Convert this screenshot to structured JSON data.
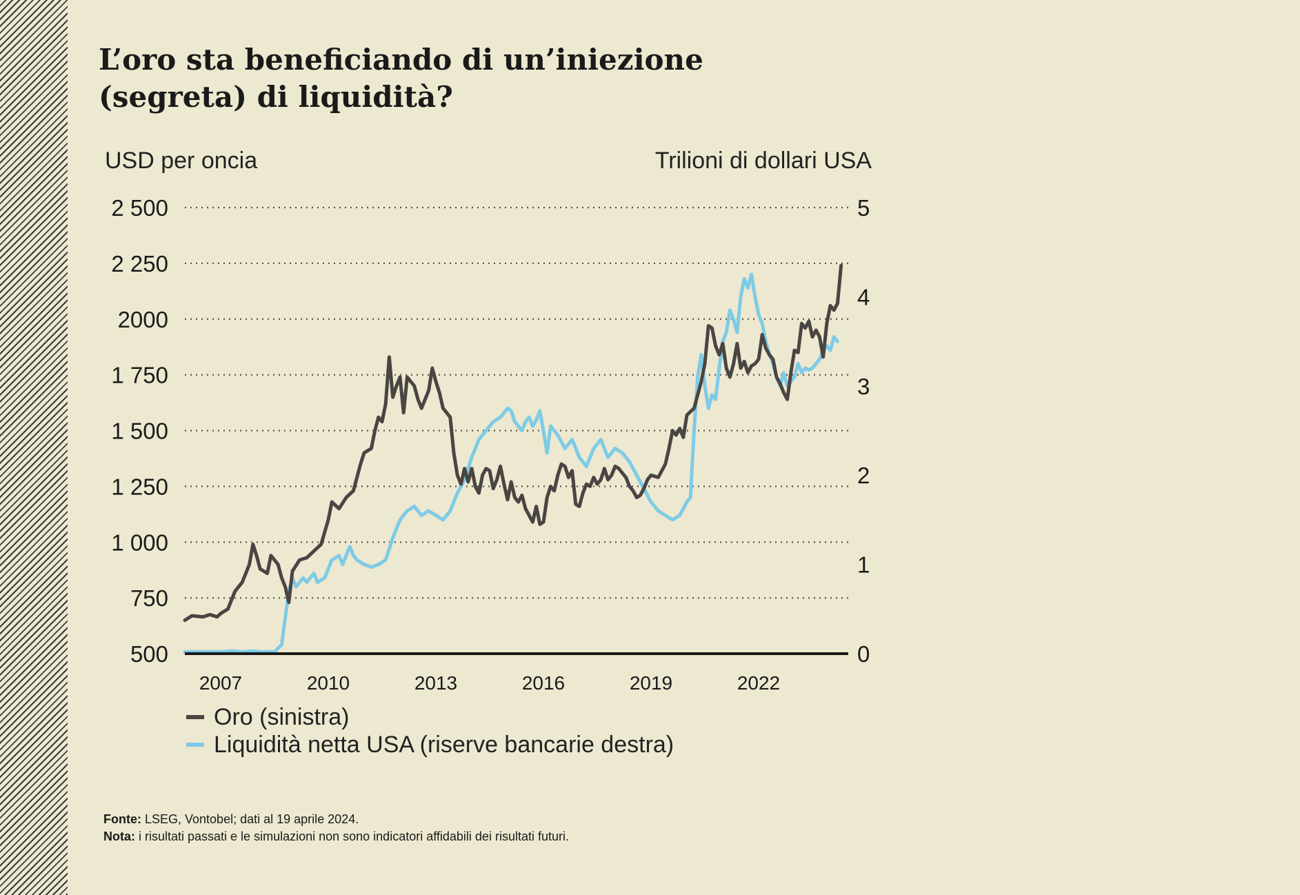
{
  "title_lines": [
    "L’oro sta beneficiando di un’iniezione",
    "(segreta) di liquidità?"
  ],
  "colors": {
    "background": "#ede8d0",
    "gold": "#4a4542",
    "liquidity": "#7ecbe6",
    "grid": "#555555",
    "axis": "#1a1a1a"
  },
  "chart_data": {
    "type": "line",
    "title": "L’oro sta beneficiando di un’iniezione (segreta) di liquidità?",
    "left_axis": {
      "label": "USD per oncia",
      "range": [
        500,
        2500
      ],
      "ticks": [
        500,
        750,
        1000,
        1250,
        1500,
        1750,
        2000,
        2250,
        2500
      ],
      "tick_labels": [
        "500",
        "750",
        "1 000",
        "1 250",
        "1 500",
        "1 750",
        "2000",
        "2 250",
        "2 500"
      ]
    },
    "right_axis": {
      "label": "Trilioni di dollari USA",
      "range": [
        0,
        5
      ],
      "ticks": [
        0,
        1,
        2,
        3,
        4,
        5
      ],
      "tick_labels": [
        "0",
        "1",
        "2",
        "3",
        "4",
        "5"
      ]
    },
    "x_axis": {
      "range": [
        2006.0,
        2024.5
      ],
      "ticks": [
        2007,
        2010,
        2013,
        2016,
        2019,
        2022
      ],
      "tick_labels": [
        "2007",
        "2010",
        "2013",
        "2016",
        "2019",
        "2022"
      ]
    },
    "grid": "horizontal dotted",
    "legend": {
      "placement": "bottom-left",
      "entries": [
        "Oro (sinistra)",
        "Liquidità netta USA (riserve bancarie destra)"
      ]
    },
    "series": [
      {
        "name": "Oro (sinistra)",
        "axis": "left",
        "color": "#4a4542",
        "points": [
          [
            2006.0,
            650
          ],
          [
            2006.2,
            670
          ],
          [
            2006.5,
            665
          ],
          [
            2006.7,
            675
          ],
          [
            2006.9,
            665
          ],
          [
            2007.0,
            680
          ],
          [
            2007.2,
            700
          ],
          [
            2007.4,
            780
          ],
          [
            2007.6,
            820
          ],
          [
            2007.8,
            900
          ],
          [
            2007.9,
            990
          ],
          [
            2008.0,
            940
          ],
          [
            2008.1,
            880
          ],
          [
            2008.3,
            860
          ],
          [
            2008.4,
            940
          ],
          [
            2008.6,
            900
          ],
          [
            2008.7,
            840
          ],
          [
            2008.8,
            800
          ],
          [
            2008.9,
            730
          ],
          [
            2009.0,
            870
          ],
          [
            2009.2,
            920
          ],
          [
            2009.4,
            930
          ],
          [
            2009.6,
            960
          ],
          [
            2009.8,
            990
          ],
          [
            2010.0,
            1100
          ],
          [
            2010.1,
            1180
          ],
          [
            2010.3,
            1150
          ],
          [
            2010.5,
            1200
          ],
          [
            2010.7,
            1230
          ],
          [
            2010.9,
            1350
          ],
          [
            2011.0,
            1400
          ],
          [
            2011.2,
            1420
          ],
          [
            2011.3,
            1500
          ],
          [
            2011.4,
            1560
          ],
          [
            2011.5,
            1540
          ],
          [
            2011.6,
            1620
          ],
          [
            2011.7,
            1830
          ],
          [
            2011.8,
            1650
          ],
          [
            2011.9,
            1700
          ],
          [
            2012.0,
            1740
          ],
          [
            2012.1,
            1580
          ],
          [
            2012.2,
            1740
          ],
          [
            2012.4,
            1700
          ],
          [
            2012.5,
            1640
          ],
          [
            2012.6,
            1600
          ],
          [
            2012.8,
            1680
          ],
          [
            2012.9,
            1780
          ],
          [
            2013.0,
            1720
          ],
          [
            2013.1,
            1670
          ],
          [
            2013.2,
            1600
          ],
          [
            2013.4,
            1560
          ],
          [
            2013.5,
            1400
          ],
          [
            2013.6,
            1300
          ],
          [
            2013.7,
            1260
          ],
          [
            2013.8,
            1330
          ],
          [
            2013.9,
            1270
          ],
          [
            2014.0,
            1330
          ],
          [
            2014.1,
            1250
          ],
          [
            2014.2,
            1220
          ],
          [
            2014.3,
            1300
          ],
          [
            2014.4,
            1330
          ],
          [
            2014.5,
            1320
          ],
          [
            2014.6,
            1240
          ],
          [
            2014.7,
            1280
          ],
          [
            2014.8,
            1340
          ],
          [
            2014.9,
            1260
          ],
          [
            2015.0,
            1190
          ],
          [
            2015.1,
            1270
          ],
          [
            2015.2,
            1200
          ],
          [
            2015.3,
            1180
          ],
          [
            2015.4,
            1210
          ],
          [
            2015.5,
            1150
          ],
          [
            2015.6,
            1120
          ],
          [
            2015.7,
            1090
          ],
          [
            2015.8,
            1160
          ],
          [
            2015.9,
            1080
          ],
          [
            2016.0,
            1090
          ],
          [
            2016.1,
            1200
          ],
          [
            2016.2,
            1250
          ],
          [
            2016.3,
            1230
          ],
          [
            2016.4,
            1300
          ],
          [
            2016.5,
            1350
          ],
          [
            2016.6,
            1340
          ],
          [
            2016.7,
            1290
          ],
          [
            2016.8,
            1320
          ],
          [
            2016.9,
            1170
          ],
          [
            2017.0,
            1160
          ],
          [
            2017.1,
            1220
          ],
          [
            2017.2,
            1260
          ],
          [
            2017.3,
            1250
          ],
          [
            2017.4,
            1290
          ],
          [
            2017.5,
            1260
          ],
          [
            2017.6,
            1280
          ],
          [
            2017.7,
            1330
          ],
          [
            2017.8,
            1280
          ],
          [
            2017.9,
            1300
          ],
          [
            2018.0,
            1340
          ],
          [
            2018.1,
            1330
          ],
          [
            2018.2,
            1310
          ],
          [
            2018.3,
            1290
          ],
          [
            2018.4,
            1250
          ],
          [
            2018.5,
            1230
          ],
          [
            2018.6,
            1200
          ],
          [
            2018.7,
            1210
          ],
          [
            2018.8,
            1240
          ],
          [
            2018.9,
            1280
          ],
          [
            2019.0,
            1300
          ],
          [
            2019.2,
            1290
          ],
          [
            2019.4,
            1350
          ],
          [
            2019.5,
            1420
          ],
          [
            2019.6,
            1500
          ],
          [
            2019.7,
            1480
          ],
          [
            2019.8,
            1510
          ],
          [
            2019.9,
            1470
          ],
          [
            2020.0,
            1570
          ],
          [
            2020.2,
            1600
          ],
          [
            2020.4,
            1720
          ],
          [
            2020.5,
            1800
          ],
          [
            2020.6,
            1970
          ],
          [
            2020.7,
            1960
          ],
          [
            2020.8,
            1880
          ],
          [
            2020.9,
            1840
          ],
          [
            2021.0,
            1890
          ],
          [
            2021.1,
            1780
          ],
          [
            2021.2,
            1740
          ],
          [
            2021.3,
            1800
          ],
          [
            2021.4,
            1890
          ],
          [
            2021.5,
            1780
          ],
          [
            2021.6,
            1810
          ],
          [
            2021.7,
            1760
          ],
          [
            2021.8,
            1790
          ],
          [
            2021.9,
            1800
          ],
          [
            2022.0,
            1820
          ],
          [
            2022.1,
            1930
          ],
          [
            2022.2,
            1870
          ],
          [
            2022.3,
            1840
          ],
          [
            2022.4,
            1820
          ],
          [
            2022.5,
            1740
          ],
          [
            2022.6,
            1710
          ],
          [
            2022.7,
            1670
          ],
          [
            2022.8,
            1640
          ],
          [
            2022.9,
            1760
          ],
          [
            2023.0,
            1860
          ],
          [
            2023.1,
            1850
          ],
          [
            2023.2,
            1980
          ],
          [
            2023.3,
            1960
          ],
          [
            2023.4,
            1990
          ],
          [
            2023.5,
            1920
          ],
          [
            2023.6,
            1950
          ],
          [
            2023.7,
            1920
          ],
          [
            2023.8,
            1830
          ],
          [
            2023.9,
            1980
          ],
          [
            2024.0,
            2060
          ],
          [
            2024.1,
            2040
          ],
          [
            2024.2,
            2070
          ],
          [
            2024.3,
            2240
          ]
        ]
      },
      {
        "name": "Liquidità netta USA (riserve bancarie destra)",
        "axis": "right",
        "color": "#7ecbe6",
        "points": [
          [
            2006.0,
            0.02
          ],
          [
            2006.5,
            0.02
          ],
          [
            2007.0,
            0.02
          ],
          [
            2007.3,
            0.03
          ],
          [
            2007.6,
            0.02
          ],
          [
            2007.9,
            0.03
          ],
          [
            2008.1,
            0.02
          ],
          [
            2008.3,
            0.02
          ],
          [
            2008.5,
            0.02
          ],
          [
            2008.7,
            0.1
          ],
          [
            2008.8,
            0.4
          ],
          [
            2008.9,
            0.7
          ],
          [
            2009.0,
            0.85
          ],
          [
            2009.1,
            0.75
          ],
          [
            2009.3,
            0.85
          ],
          [
            2009.4,
            0.8
          ],
          [
            2009.6,
            0.9
          ],
          [
            2009.7,
            0.8
          ],
          [
            2009.9,
            0.85
          ],
          [
            2010.1,
            1.05
          ],
          [
            2010.3,
            1.1
          ],
          [
            2010.4,
            1.0
          ],
          [
            2010.6,
            1.2
          ],
          [
            2010.7,
            1.1
          ],
          [
            2010.8,
            1.05
          ],
          [
            2011.0,
            1.0
          ],
          [
            2011.2,
            0.97
          ],
          [
            2011.4,
            1.0
          ],
          [
            2011.6,
            1.05
          ],
          [
            2011.8,
            1.3
          ],
          [
            2012.0,
            1.5
          ],
          [
            2012.2,
            1.6
          ],
          [
            2012.4,
            1.65
          ],
          [
            2012.6,
            1.55
          ],
          [
            2012.8,
            1.6
          ],
          [
            2013.0,
            1.55
          ],
          [
            2013.2,
            1.5
          ],
          [
            2013.4,
            1.6
          ],
          [
            2013.6,
            1.8
          ],
          [
            2013.8,
            1.95
          ],
          [
            2014.0,
            2.2
          ],
          [
            2014.2,
            2.4
          ],
          [
            2014.4,
            2.5
          ],
          [
            2014.6,
            2.6
          ],
          [
            2014.8,
            2.65
          ],
          [
            2015.0,
            2.75
          ],
          [
            2015.1,
            2.72
          ],
          [
            2015.2,
            2.6
          ],
          [
            2015.4,
            2.5
          ],
          [
            2015.5,
            2.6
          ],
          [
            2015.6,
            2.65
          ],
          [
            2015.7,
            2.55
          ],
          [
            2015.8,
            2.62
          ],
          [
            2015.9,
            2.72
          ],
          [
            2016.0,
            2.5
          ],
          [
            2016.1,
            2.25
          ],
          [
            2016.2,
            2.55
          ],
          [
            2016.4,
            2.45
          ],
          [
            2016.6,
            2.3
          ],
          [
            2016.8,
            2.4
          ],
          [
            2017.0,
            2.2
          ],
          [
            2017.2,
            2.1
          ],
          [
            2017.4,
            2.3
          ],
          [
            2017.6,
            2.4
          ],
          [
            2017.8,
            2.2
          ],
          [
            2018.0,
            2.3
          ],
          [
            2018.2,
            2.25
          ],
          [
            2018.4,
            2.15
          ],
          [
            2018.6,
            2.0
          ],
          [
            2018.8,
            1.85
          ],
          [
            2019.0,
            1.7
          ],
          [
            2019.2,
            1.6
          ],
          [
            2019.4,
            1.55
          ],
          [
            2019.6,
            1.5
          ],
          [
            2019.8,
            1.55
          ],
          [
            2020.0,
            1.7
          ],
          [
            2020.1,
            1.75
          ],
          [
            2020.2,
            2.5
          ],
          [
            2020.3,
            3.1
          ],
          [
            2020.4,
            3.35
          ],
          [
            2020.5,
            3.0
          ],
          [
            2020.6,
            2.75
          ],
          [
            2020.7,
            2.9
          ],
          [
            2020.8,
            2.85
          ],
          [
            2020.9,
            3.2
          ],
          [
            2021.0,
            3.5
          ],
          [
            2021.1,
            3.6
          ],
          [
            2021.2,
            3.85
          ],
          [
            2021.3,
            3.75
          ],
          [
            2021.4,
            3.6
          ],
          [
            2021.5,
            4.0
          ],
          [
            2021.6,
            4.2
          ],
          [
            2021.7,
            4.1
          ],
          [
            2021.8,
            4.25
          ],
          [
            2021.9,
            4.0
          ],
          [
            2022.0,
            3.8
          ],
          [
            2022.1,
            3.7
          ],
          [
            2022.2,
            3.5
          ],
          [
            2022.3,
            3.35
          ],
          [
            2022.4,
            3.25
          ],
          [
            2022.5,
            3.1
          ],
          [
            2022.6,
            3.0
          ],
          [
            2022.7,
            3.15
          ],
          [
            2022.8,
            3.0
          ],
          [
            2022.9,
            3.05
          ],
          [
            2023.0,
            3.1
          ],
          [
            2023.1,
            3.25
          ],
          [
            2023.2,
            3.15
          ],
          [
            2023.3,
            3.2
          ],
          [
            2023.4,
            3.18
          ],
          [
            2023.5,
            3.2
          ],
          [
            2023.6,
            3.25
          ],
          [
            2023.7,
            3.3
          ],
          [
            2023.8,
            3.4
          ],
          [
            2023.9,
            3.45
          ],
          [
            2024.0,
            3.4
          ],
          [
            2024.1,
            3.55
          ],
          [
            2024.2,
            3.5
          ]
        ]
      }
    ]
  },
  "notes": {
    "source_label": "Fonte:",
    "source_text": " LSEG, Vontobel; dati al 19 aprile 2024.",
    "note_label": "Nota:",
    "note_text": " i risultati passati e le simulazioni non sono indicatori affidabili dei risultati futuri."
  }
}
